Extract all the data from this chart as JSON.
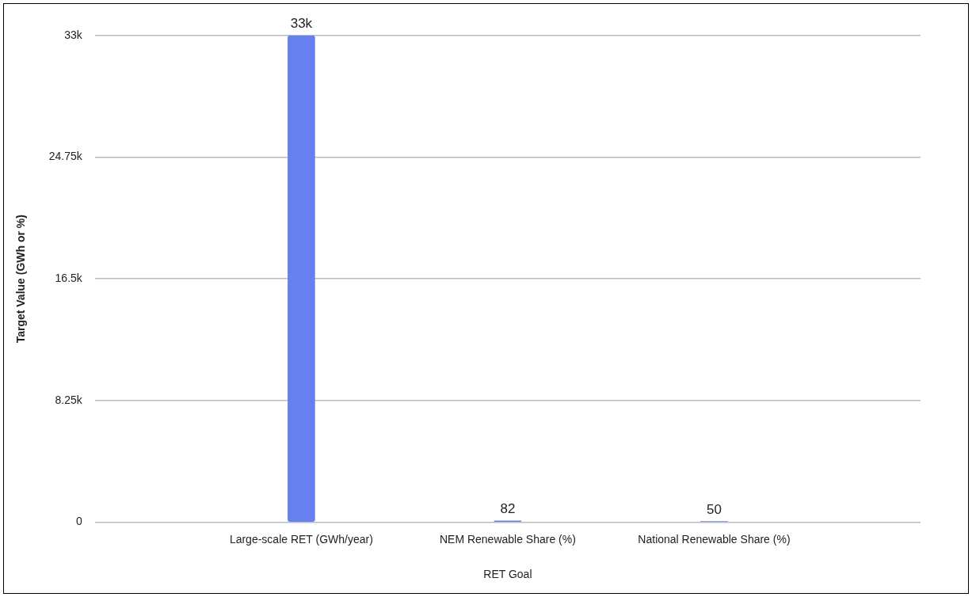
{
  "chart_data": {
    "type": "bar",
    "xlabel": "RET Goal",
    "ylabel": "Target Value (GWh or %)",
    "categories": [
      "Large-scale RET (GWh/year)",
      "NEM Renewable Share (%)",
      "National Renewable Share (%)"
    ],
    "values": [
      33000,
      82,
      50
    ],
    "value_labels": [
      "33k",
      "82",
      "50"
    ],
    "color": "#6680f0",
    "ylim": [
      0,
      33000
    ],
    "yticks": [
      0,
      {
        "value": 8250,
        "label": "8.25k"
      },
      {
        "value": 16500,
        "label": "16.5k"
      },
      {
        "value": 24750,
        "label": "24.75k"
      },
      {
        "value": 33000,
        "label": "33k"
      }
    ],
    "grid": "y",
    "legend": false
  }
}
